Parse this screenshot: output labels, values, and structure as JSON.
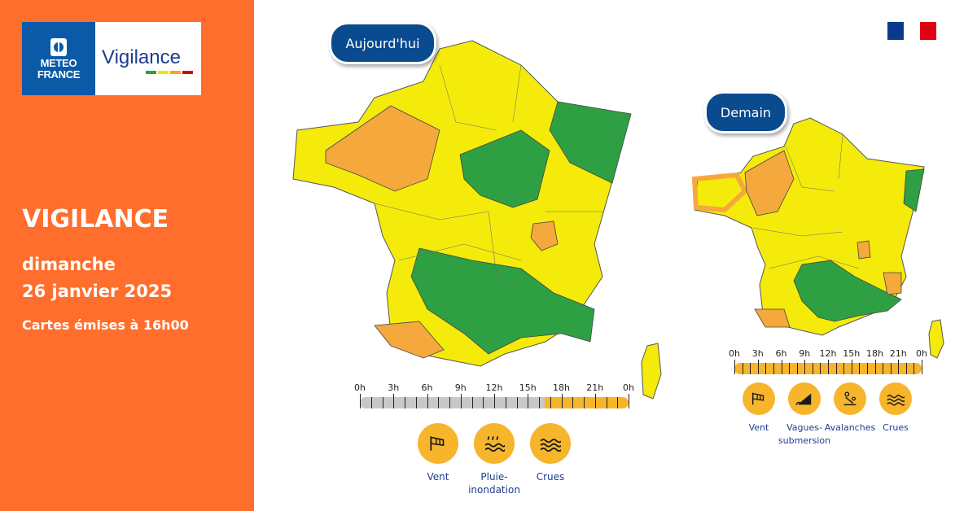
{
  "brand": {
    "meteo_line1": "METEO",
    "meteo_line2": "FRANCE",
    "vigilance_word": "Vigilance",
    "bar_colors": [
      "#2E9E3C",
      "#F2E200",
      "#F5A623",
      "#D0021B"
    ]
  },
  "left": {
    "title": "VIGILANCE",
    "day": "dimanche",
    "date": "26 janvier 2025",
    "issued": "Cartes émises à 16h00"
  },
  "today": {
    "label": "Aujourd'hui",
    "ticks": [
      "0h",
      "3h",
      "6h",
      "9h",
      "12h",
      "15h",
      "18h",
      "21h",
      "0h"
    ],
    "segments": [
      {
        "from": 0,
        "to": 16.5,
        "color": "#C8C8C8"
      },
      {
        "from": 16.5,
        "to": 24,
        "color": "#F7B52B"
      }
    ],
    "hazards": [
      {
        "icon": "wind-icon",
        "label": "Vent"
      },
      {
        "icon": "rain-flood-icon",
        "label": "Pluie-\ninondation"
      },
      {
        "icon": "flood-icon",
        "label": "Crues"
      }
    ]
  },
  "tomorrow": {
    "label": "Demain",
    "ticks": [
      "0h",
      "3h",
      "6h",
      "9h",
      "12h",
      "15h",
      "18h",
      "21h",
      "0h"
    ],
    "segments": [
      {
        "from": 0,
        "to": 24,
        "color": "#F7B52B"
      }
    ],
    "hazards": [
      {
        "icon": "wind-icon",
        "label": "Vent"
      },
      {
        "icon": "waves-submersion-icon",
        "label": "Vagues-\nsubmersion"
      },
      {
        "icon": "avalanche-icon",
        "label": "Avalanches"
      },
      {
        "icon": "flood-icon",
        "label": "Crues"
      }
    ]
  },
  "colors": {
    "green": "#2EA043",
    "yellow": "#F4EB0B",
    "orange": "#F5A83C",
    "panel": "#FF6E2D",
    "navy": "#0A4A8F"
  }
}
